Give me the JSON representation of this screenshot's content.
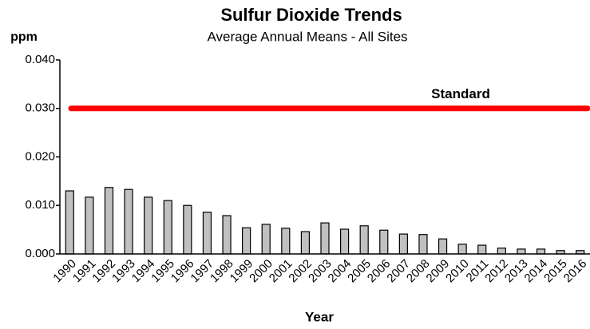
{
  "chart_data": {
    "type": "bar",
    "title": "Sulfur Dioxide Trends",
    "subtitle": "Average Annual Means - All Sites",
    "y_label": "ppm",
    "x_label": "Year",
    "categories": [
      "1990",
      "1991",
      "1992",
      "1993",
      "1994",
      "1995",
      "1996",
      "1997",
      "1998",
      "1999",
      "2000",
      "2001",
      "2002",
      "2003",
      "2004",
      "2005",
      "2006",
      "2007",
      "2008",
      "2009",
      "2010",
      "2011",
      "2012",
      "2013",
      "2014",
      "2015",
      "2016"
    ],
    "values": [
      0.013,
      0.0117,
      0.0137,
      0.0133,
      0.0117,
      0.011,
      0.01,
      0.0086,
      0.0079,
      0.0054,
      0.0061,
      0.0053,
      0.0046,
      0.0064,
      0.0051,
      0.0058,
      0.0049,
      0.0041,
      0.004,
      0.0031,
      0.002,
      0.0018,
      0.0012,
      0.001,
      0.001,
      0.0007,
      0.0007
    ],
    "color": "#c0c0c0",
    "ylim": [
      0,
      0.04
    ],
    "yticks": [
      {
        "value": 0,
        "label": "0.000"
      },
      {
        "value": 0.01,
        "label": "0.010"
      },
      {
        "value": 0.02,
        "label": "0.020"
      },
      {
        "value": 0.03,
        "label": "0.030"
      },
      {
        "value": 0.04,
        "label": "0.040"
      }
    ],
    "standard": {
      "label": "Standard",
      "value": 0.03,
      "color": "#ff0000"
    }
  }
}
